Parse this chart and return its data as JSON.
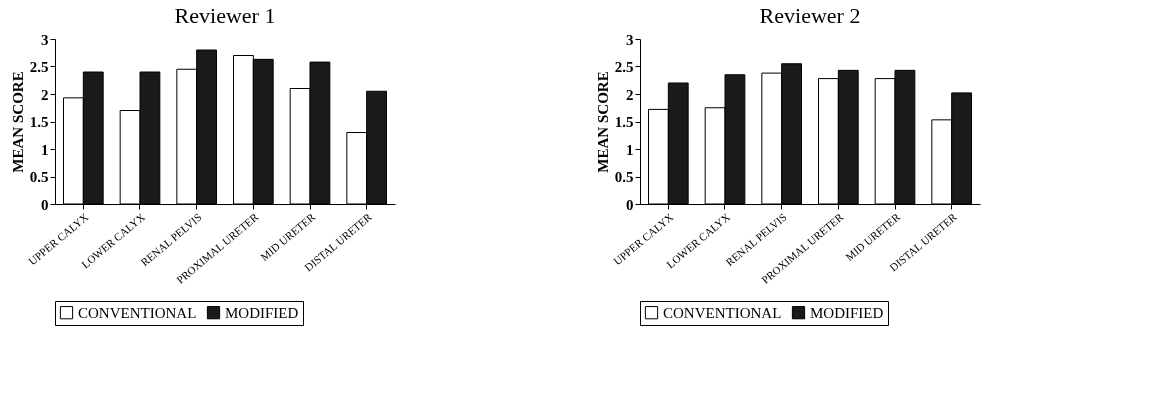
{
  "chart_data": [
    {
      "type": "bar",
      "title": "Reviewer 1",
      "ylabel": "MEAN SCORE",
      "categories": [
        "UPPER CALYX",
        "LOWER CALYX",
        "RENAL PELVIS",
        "PROXIMAL URETER",
        "MID URETER",
        "DISTAL URETER"
      ],
      "series": [
        {
          "name": "CONVENTIONAL",
          "color": "#ffffff",
          "values": [
            1.93,
            1.7,
            2.45,
            2.7,
            2.1,
            1.3
          ]
        },
        {
          "name": "MODIFIED",
          "color": "#1a1a1a",
          "values": [
            2.4,
            2.4,
            2.8,
            2.63,
            2.58,
            2.05
          ]
        }
      ],
      "ylim": [
        0,
        3
      ],
      "yticks": [
        0,
        0.5,
        1,
        1.5,
        2,
        2.5,
        3
      ],
      "grid": false,
      "legend": "bottom"
    },
    {
      "type": "bar",
      "title": "Reviewer 2",
      "ylabel": "MEAN SCORE",
      "categories": [
        "UPPER CALYX",
        "LOWER CALYX",
        "RENAL PELVIS",
        "PROXIMAL URETER",
        "MID URETER",
        "DISTAL URETER"
      ],
      "series": [
        {
          "name": "CONVENTIONAL",
          "color": "#ffffff",
          "values": [
            1.72,
            1.75,
            2.38,
            2.28,
            2.28,
            1.53
          ]
        },
        {
          "name": "MODIFIED",
          "color": "#1a1a1a",
          "values": [
            2.2,
            2.35,
            2.55,
            2.43,
            2.43,
            2.02
          ]
        }
      ],
      "ylim": [
        0,
        3
      ],
      "yticks": [
        0,
        0.5,
        1,
        1.5,
        2,
        2.5,
        3
      ],
      "grid": false,
      "legend": "bottom"
    }
  ]
}
